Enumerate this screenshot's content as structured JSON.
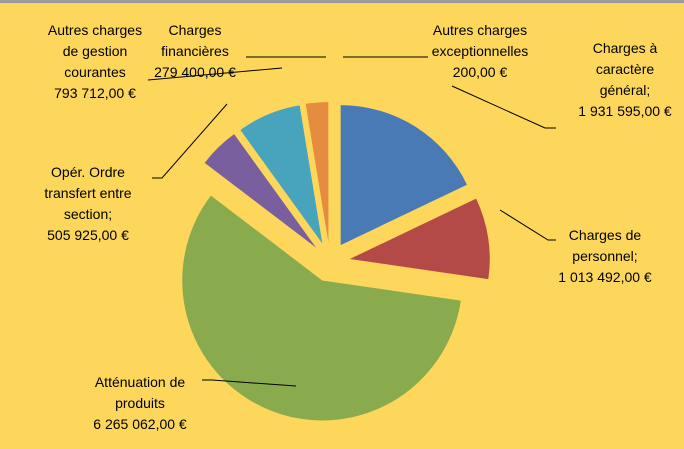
{
  "chart_data": {
    "type": "pie",
    "categories": [
      "Charges à caractère général;",
      "Charges de personnel;",
      "Atténuation de produits",
      "Opér. Ordre transfert entre section;",
      "Autres charges de gestion courantes",
      "Charges financières",
      "Autres charges exceptionnelles"
    ],
    "values": [
      1931595,
      1013492,
      6265062,
      505925,
      793712,
      279400,
      200
    ],
    "value_labels": [
      "1 931 595,00 €",
      "1 013 492,00 €",
      "6 265 062,00 €",
      "505 925,00 €",
      "793 712,00 €",
      "279 400,00 €",
      "200,00 €"
    ],
    "colors": [
      "#4a7ab5",
      "#b44a47",
      "#8aaa4e",
      "#7a5f9e",
      "#48a3bd",
      "#e58c40",
      "#d9d9d9"
    ]
  }
}
